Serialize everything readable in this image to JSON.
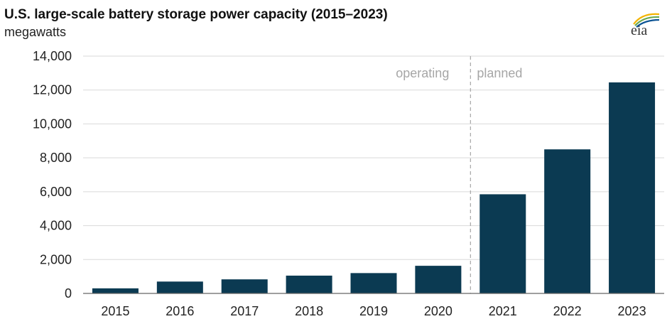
{
  "chart_data": {
    "type": "bar",
    "title": "U.S. large-scale battery storage power capacity (2015–2023)",
    "ylabel": "megawatts",
    "xlabel": "",
    "categories": [
      "2015",
      "2016",
      "2017",
      "2018",
      "2019",
      "2020",
      "2021",
      "2022",
      "2023"
    ],
    "values": [
      300,
      700,
      830,
      1050,
      1200,
      1630,
      5850,
      8500,
      12450
    ],
    "ylim": [
      0,
      14000
    ],
    "yticks": [
      0,
      2000,
      4000,
      6000,
      8000,
      10000,
      12000,
      14000
    ],
    "ytick_labels": [
      "0",
      "2,000",
      "4,000",
      "6,000",
      "8,000",
      "10,000",
      "12,000",
      "14,000"
    ],
    "grid": true,
    "bar_color": "#0b3a52",
    "divider": {
      "after_category": "2020",
      "left_label": "operating",
      "right_label": "planned"
    }
  },
  "logo": {
    "text": "eia",
    "colors": [
      "#f4b400",
      "#6aa84f",
      "#0b5394"
    ]
  }
}
